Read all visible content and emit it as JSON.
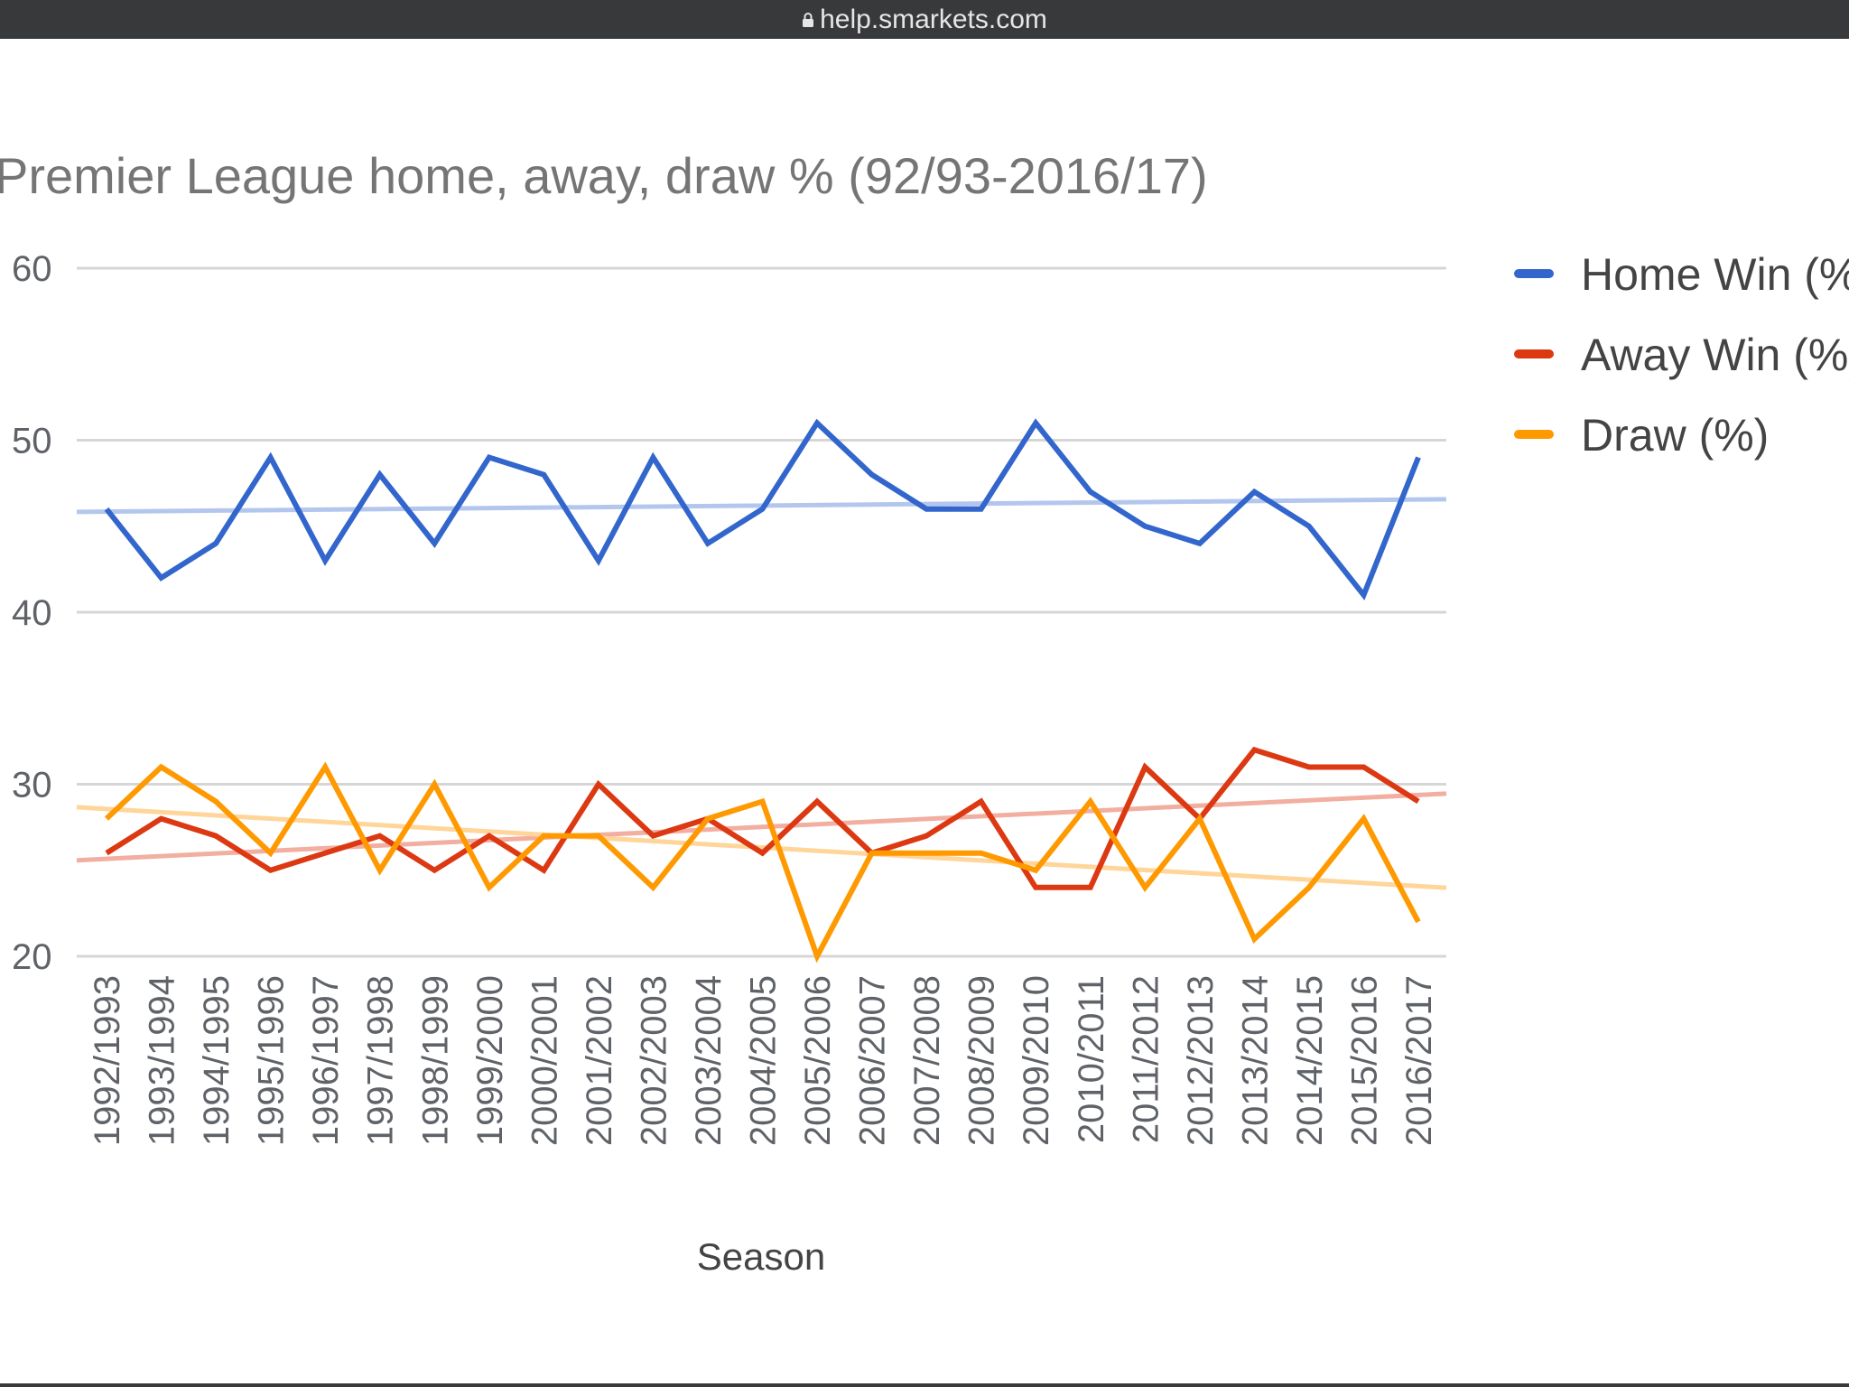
{
  "browser": {
    "url": "help.smarkets.com",
    "lock_icon": "lock-icon"
  },
  "chart_data": {
    "type": "line",
    "title": "Premier League home, away, draw % (92/93-2016/17)",
    "xlabel": "Season",
    "ylabel": "",
    "ylim": [
      20,
      60
    ],
    "yticks": [
      20,
      30,
      40,
      50,
      60
    ],
    "grid": true,
    "legend_position": "right",
    "categories": [
      "1992/1993",
      "1993/1994",
      "1994/1995",
      "1995/1996",
      "1996/1997",
      "1997/1998",
      "1998/1999",
      "1999/2000",
      "2000/2001",
      "2001/2002",
      "2002/2003",
      "2003/2004",
      "2004/2005",
      "2005/2006",
      "2006/2007",
      "2007/2008",
      "2008/2009",
      "2009/2010",
      "2010/2011",
      "2011/2012",
      "2012/2013",
      "2013/2014",
      "2014/2015",
      "2015/2016",
      "2016/2017"
    ],
    "series": [
      {
        "name": "Home Win (%)",
        "color": "#3366cc",
        "trend_color": "#b3c7ee",
        "values": [
          46,
          42,
          44,
          49,
          43,
          48,
          44,
          49,
          48,
          43,
          49,
          44,
          46,
          51,
          48,
          46,
          46,
          51,
          47,
          45,
          44,
          47,
          45,
          41,
          49
        ]
      },
      {
        "name": "Away Win (%)",
        "color": "#dc3912",
        "trend_color": "#f2aea0",
        "values": [
          26,
          28,
          27,
          25,
          26,
          27,
          25,
          27,
          25,
          30,
          27,
          28,
          26,
          29,
          26,
          27,
          29,
          24,
          24,
          31,
          28,
          32,
          31,
          31,
          29
        ]
      },
      {
        "name": "Draw (%)",
        "color": "#ff9900",
        "trend_color": "#ffd599",
        "values": [
          28,
          31,
          29,
          26,
          31,
          25,
          30,
          24,
          27,
          27,
          24,
          28,
          29,
          20,
          26,
          26,
          26,
          25,
          29,
          24,
          28,
          21,
          24,
          28,
          22
        ]
      }
    ]
  }
}
